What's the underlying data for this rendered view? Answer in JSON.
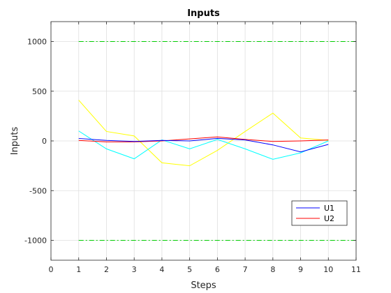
{
  "chart_data": {
    "type": "line",
    "title": "Inputs",
    "xlabel": "Steps",
    "ylabel": "Inputs",
    "xlim": [
      0,
      11
    ],
    "ylim": [
      -1200,
      1200
    ],
    "xticks": [
      "0",
      "1",
      "2",
      "3",
      "4",
      "5",
      "6",
      "7",
      "8",
      "9",
      "10",
      "11"
    ],
    "yticks": [
      "-1000",
      "-500",
      "0",
      "500",
      "1000"
    ],
    "xtick_values": [
      0,
      1,
      2,
      3,
      4,
      5,
      6,
      7,
      8,
      9,
      10,
      11
    ],
    "ytick_values": [
      -1000,
      -500,
      0,
      500,
      1000
    ],
    "grid": true,
    "legend_position": "bottom-right",
    "x": [
      1,
      2,
      3,
      4,
      5,
      6,
      7,
      8,
      9,
      10
    ],
    "series": [
      {
        "name": "U1",
        "color": "#0000ff",
        "values": [
          25,
          5,
          -5,
          5,
          0,
          25,
          10,
          -40,
          -110,
          -35
        ],
        "in_legend": true
      },
      {
        "name": "U2",
        "color": "#ff0000",
        "values": [
          5,
          -10,
          -10,
          0,
          20,
          40,
          15,
          -5,
          0,
          10
        ],
        "in_legend": true
      },
      {
        "name": "",
        "color": "#00ffff",
        "values": [
          100,
          -80,
          -180,
          10,
          -80,
          15,
          -80,
          -185,
          -120,
          0
        ],
        "in_legend": false
      },
      {
        "name": "",
        "color": "#ffff00",
        "values": [
          410,
          95,
          50,
          -220,
          -250,
          -95,
          95,
          280,
          30,
          5
        ],
        "in_legend": false
      }
    ],
    "bounds": {
      "color": "#00cc00",
      "upper": 1000,
      "lower": -1000,
      "x_range": [
        1,
        11
      ]
    }
  }
}
